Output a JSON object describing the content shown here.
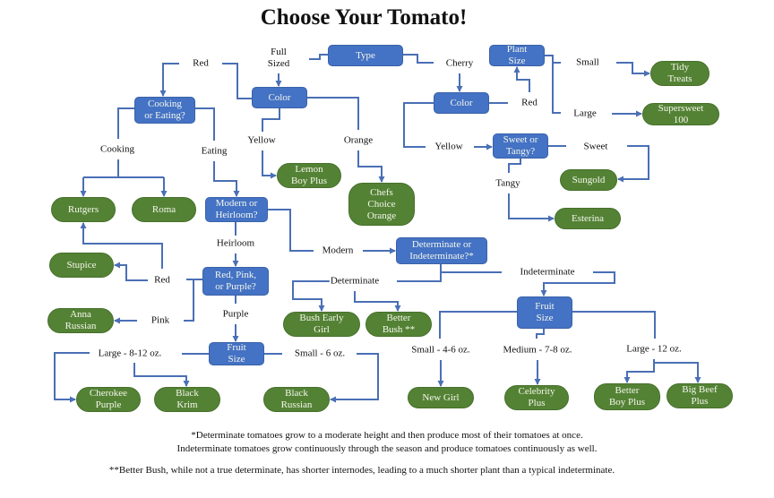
{
  "title": "Choose Your Tomato!",
  "colors": {
    "decision": "#4472c4",
    "variety": "#548235",
    "connector": "#4a6fb5"
  },
  "decisions": {
    "type": "Type",
    "color_full": "Color",
    "cooking_eating": "Cooking\nor Eating?",
    "modern_heirloom": "Modern or\nHeirloom?",
    "det_indet": "Determinate or\nIndeterminate?*",
    "red_pink_purple": "Red, Pink,\nor Purple?",
    "fruit_size_purple": "Fruit\nSize",
    "plant_size": "Plant\nSize",
    "color_cherry": "Color",
    "sweet_tangy": "Sweet or\nTangy?",
    "fruit_size_indet": "Fruit\nSize"
  },
  "varieties": {
    "tidy_treats": "Tidy\nTreats",
    "supersweet": "Supersweet\n100",
    "sungold": "Sungold",
    "esterina": "Esterina",
    "lemon_boy": "Lemon\nBoy Plus",
    "chefs_choice": "Chefs\nChoice\nOrange",
    "rutgers": "Rutgers",
    "roma": "Roma",
    "stupice": "Stupice",
    "anna_russian": "Anna\nRussian",
    "cherokee": "Cherokee\nPurple",
    "black_krim": "Black\nKrim",
    "black_russian": "Black\nRussian",
    "bush_early_girl": "Bush Early\nGirl",
    "better_bush": "Better\nBush **",
    "new_girl": "New Girl",
    "celebrity": "Celebrity\nPlus",
    "better_boy": "Better\nBoy Plus",
    "big_beef": "Big Beef\nPlus"
  },
  "labels": {
    "full_sized": "Full\nSized",
    "red_full": "Red",
    "cherry": "Cherry",
    "small_plant": "Small",
    "large_plant": "Large",
    "red_cherry": "Red",
    "yellow_full": "Yellow",
    "orange": "Orange",
    "cooking": "Cooking",
    "eating": "Eating",
    "yellow_cherry": "Yellow",
    "sweet": "Sweet",
    "tangy": "Tangy",
    "heirloom": "Heirloom",
    "modern": "Modern",
    "determinate": "Determinate",
    "indeterminate": "Indeterminate",
    "red_heirloom": "Red",
    "pink": "Pink",
    "purple": "Purple",
    "large_purple": "Large - 8-12 oz.",
    "small_purple": "Small - 6 oz.",
    "small_indet": "Small - 4-6 oz.",
    "medium_indet": "Medium - 7-8 oz.",
    "large_indet": "Large - 12 oz."
  },
  "footnotes": [
    "*Determinate tomatoes grow to a moderate height and then produce most of their tomatoes at once.",
    "Indeterminate tomatoes grow continuously through the season and produce tomatoes continuously as well.",
    "**Better Bush, while not a true determinate, has shorter internodes, leading to a much shorter plant than a typical indeterminate."
  ]
}
